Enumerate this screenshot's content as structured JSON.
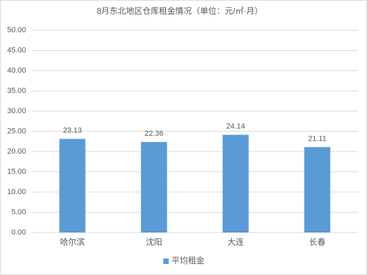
{
  "chart_data": {
    "type": "bar",
    "title": "8月东北地区仓库租金情况（单位：元/㎡·月）",
    "categories": [
      "哈尔滨",
      "沈阳",
      "大连",
      "长春"
    ],
    "series": [
      {
        "name": "平均租金",
        "color": "#5b9bd5",
        "values": [
          23.13,
          22.36,
          24.14,
          21.11
        ]
      }
    ],
    "ylim": [
      0,
      50
    ],
    "yticks": [
      {
        "value": 0,
        "label": "0.00"
      },
      {
        "value": 5,
        "label": "5.00"
      },
      {
        "value": 10,
        "label": "10.00"
      },
      {
        "value": 15,
        "label": "15.00"
      },
      {
        "value": 20,
        "label": "20.00"
      },
      {
        "value": 25,
        "label": "25.00"
      },
      {
        "value": 30,
        "label": "30.00"
      },
      {
        "value": 35,
        "label": "35.00"
      },
      {
        "value": 40,
        "label": "40.00"
      },
      {
        "value": 45,
        "label": "45.00"
      },
      {
        "value": 50,
        "label": "50.00"
      }
    ],
    "grid": true,
    "legend": "bottom"
  }
}
